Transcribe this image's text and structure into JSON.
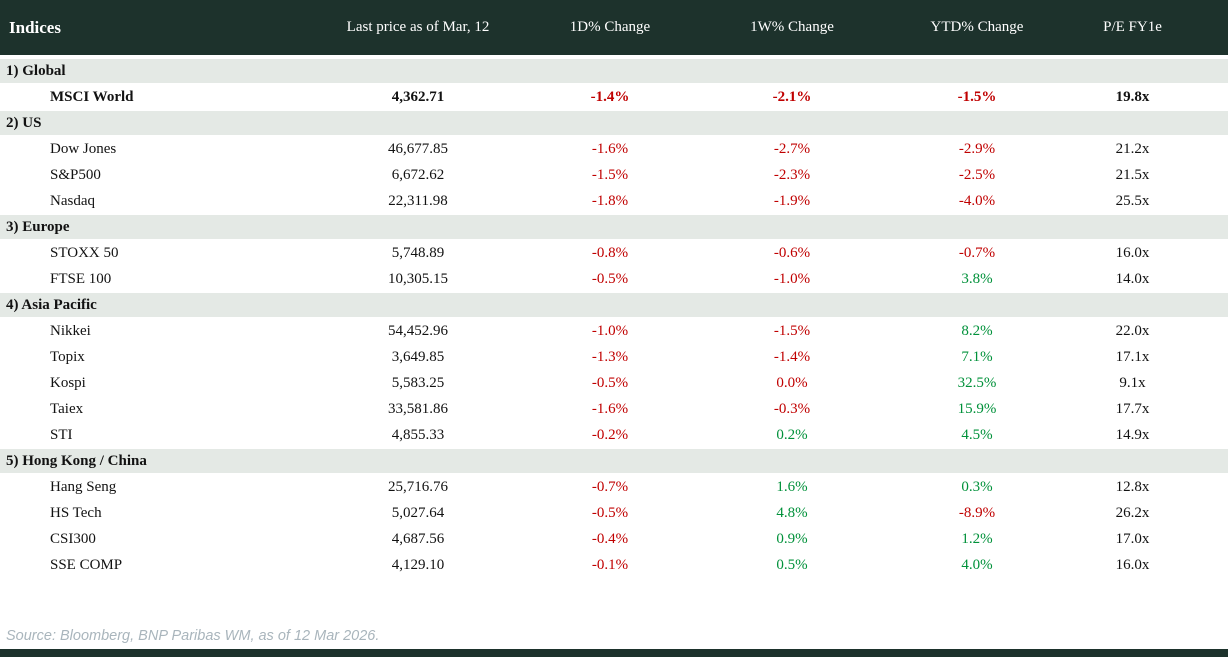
{
  "chart_data": {
    "type": "table",
    "columns": [
      "Indices",
      "Last price as of Mar, 12",
      "1D% Change",
      "1W% Change",
      "YTD% Change",
      "P/E FY1e"
    ],
    "sections": [
      {
        "label": "1) Global",
        "rows": [
          {
            "name": "MSCI World",
            "bold": true,
            "last": "4,362.71",
            "d1": "-1.4%",
            "w1": "-2.1%",
            "ytd": "-1.5%",
            "pe": "19.8x"
          }
        ]
      },
      {
        "label": "2) US",
        "rows": [
          {
            "name": "Dow Jones",
            "last": "46,677.85",
            "d1": "-1.6%",
            "w1": "-2.7%",
            "ytd": "-2.9%",
            "pe": "21.2x"
          },
          {
            "name": "S&P500",
            "last": "6,672.62",
            "d1": "-1.5%",
            "w1": "-2.3%",
            "ytd": "-2.5%",
            "pe": "21.5x"
          },
          {
            "name": "Nasdaq",
            "last": "22,311.98",
            "d1": "-1.8%",
            "w1": "-1.9%",
            "ytd": "-4.0%",
            "pe": "25.5x"
          }
        ]
      },
      {
        "label": "3) Europe",
        "rows": [
          {
            "name": "STOXX 50",
            "last": "5,748.89",
            "d1": "-0.8%",
            "w1": "-0.6%",
            "ytd": "-0.7%",
            "pe": "16.0x"
          },
          {
            "name": "FTSE 100",
            "last": "10,305.15",
            "d1": "-0.5%",
            "w1": "-1.0%",
            "ytd": "3.8%",
            "pe": "14.0x"
          }
        ]
      },
      {
        "label": "4) Asia Pacific",
        "rows": [
          {
            "name": "Nikkei",
            "last": "54,452.96",
            "d1": "-1.0%",
            "w1": "-1.5%",
            "ytd": "8.2%",
            "pe": "22.0x"
          },
          {
            "name": "Topix",
            "last": "3,649.85",
            "d1": "-1.3%",
            "w1": "-1.4%",
            "ytd": "7.1%",
            "pe": "17.1x"
          },
          {
            "name": "Kospi",
            "last": "5,583.25",
            "d1": "-0.5%",
            "w1": "0.0%",
            "ytd": "32.5%",
            "pe": "9.1x"
          },
          {
            "name": "Taiex",
            "last": "33,581.86",
            "d1": "-1.6%",
            "w1": "-0.3%",
            "ytd": "15.9%",
            "pe": "17.7x"
          },
          {
            "name": "STI",
            "last": "4,855.33",
            "d1": "-0.2%",
            "w1": "0.2%",
            "ytd": "4.5%",
            "pe": "14.9x"
          }
        ]
      },
      {
        "label": "5) Hong Kong / China",
        "rows": [
          {
            "name": "Hang Seng",
            "last": "25,716.76",
            "d1": "-0.7%",
            "w1": "1.6%",
            "ytd": "0.3%",
            "pe": "12.8x"
          },
          {
            "name": "HS Tech",
            "last": "5,027.64",
            "d1": "-0.5%",
            "w1": "4.8%",
            "ytd": "-8.9%",
            "pe": "26.2x"
          },
          {
            "name": "CSI300",
            "last": "4,687.56",
            "d1": "-0.4%",
            "w1": "0.9%",
            "ytd": "1.2%",
            "pe": "17.0x"
          },
          {
            "name": "SSE COMP",
            "last": "4,129.10",
            "d1": "-0.1%",
            "w1": "0.5%",
            "ytd": "4.0%",
            "pe": "16.0x"
          }
        ]
      }
    ],
    "layout": {
      "header_bg": "#1d322c",
      "section_band_bg": "#e4e9e5",
      "negative_color": "#c00000",
      "positive_color": "#00913a",
      "zero_rendered_as": "negative"
    }
  },
  "footer": {
    "source": "Source: Bloomberg, BNP Paribas WM, as of 12 Mar 2026."
  }
}
